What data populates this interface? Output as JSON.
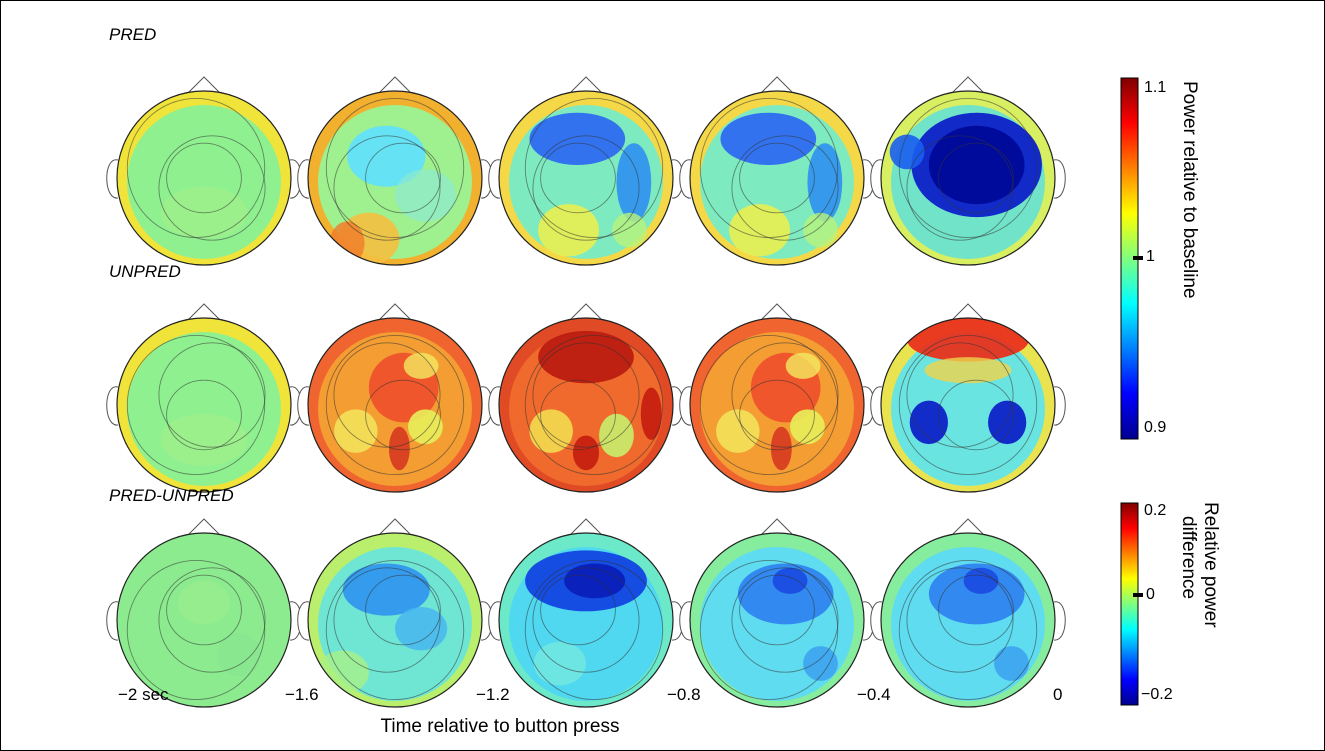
{
  "rows": [
    {
      "label": "PRED",
      "fields": [
        "neutral",
        "mild-low",
        "low",
        "low",
        "very-low"
      ]
    },
    {
      "label": "UNPRED",
      "fields": [
        "neutral",
        "high",
        "very-high",
        "high",
        "mixed"
      ]
    },
    {
      "label": "PRED-UNPRED",
      "fields": [
        "flat",
        "mild-neg",
        "strong-neg",
        "neg",
        "neg"
      ]
    }
  ],
  "time_ticks": [
    "−2 sec",
    "−1.6",
    "−1.2",
    "−0.8",
    "−0.4",
    "0"
  ],
  "x_axis_title": "Time relative to button press",
  "colorbars": [
    {
      "title": "Power relative to baseline",
      "max_label": "1.1",
      "mid_label": "1",
      "min_label": "0.9"
    },
    {
      "title_line1": "Relative power",
      "title_line2": "difference",
      "max_label": "0.2",
      "mid_label": "0",
      "min_label": "−0.2"
    }
  ],
  "colors": {
    "jet_low": "#00008f",
    "jet_mid": "#7fff7f",
    "jet_high": "#800000"
  }
}
